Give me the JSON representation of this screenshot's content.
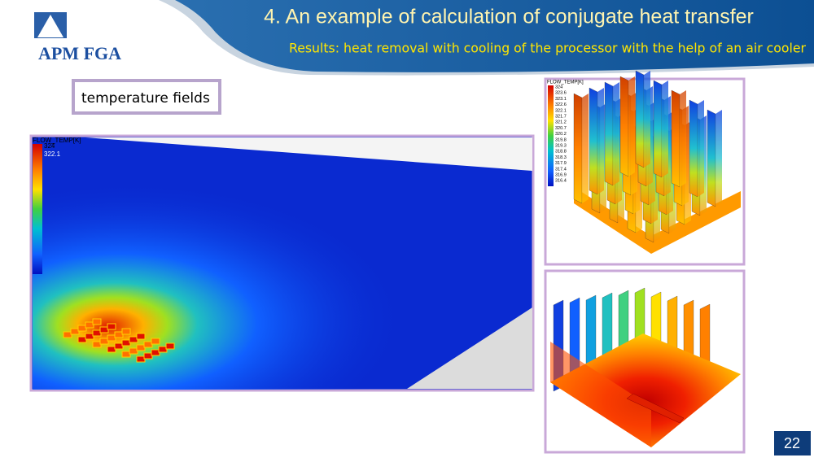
{
  "logo": {
    "name": "APM FGA"
  },
  "header": {
    "title": "4. An example of calculation of conjugate heat transfer",
    "subtitle": "Results: heat removal with cooling of the processor with the help of an air cooler"
  },
  "label": "temperature fields",
  "left_panel": {
    "legend_title": "FLOW_TEMP[K]",
    "legend_labels": [
      "324",
      "322.1"
    ]
  },
  "top_right_panel": {
    "legend_title": "FLOW_TEMP[K]",
    "legend_labels": [
      "324",
      "323.6",
      "323.1",
      "322.6",
      "322.1",
      "321.7",
      "321.2",
      "320.7",
      "320.2",
      "319.8",
      "319.3",
      "318.8",
      "318.3",
      "317.9",
      "317.4",
      "316.9",
      "316.4"
    ]
  },
  "page_number": "22"
}
